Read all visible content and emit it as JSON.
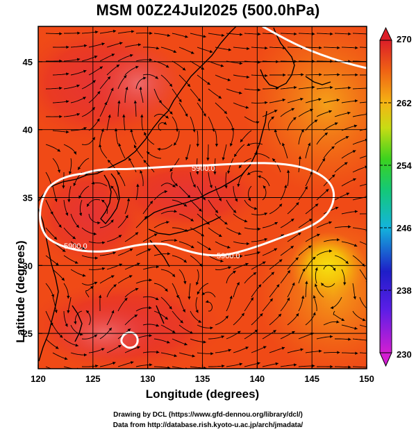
{
  "title": "MSM 00Z24Jul2025 (500.0hPa)",
  "xlabel": "Longitude (degrees)",
  "ylabel": "Latitude  (degrees)",
  "credit_line1": "Drawing by DCL (https://www.gfd-dennou.org/library/dcl/)",
  "credit_line2": "Data from http://database.rish.kyoto-u.ac.jp/arch/jmadata/",
  "map": {
    "lon_range": [
      120,
      150
    ],
    "lat_range": [
      22.4,
      47.6
    ],
    "x_ticks": [
      "120",
      "125",
      "130",
      "135",
      "140",
      "145",
      "150"
    ],
    "y_ticks": [
      "25",
      "30",
      "35",
      "40",
      "45"
    ],
    "contour_labels": [
      "5900.0",
      "5900.0",
      "5900.0"
    ],
    "colors": {
      "field_warm": "#f03a14",
      "field_hot": "#e52a2a",
      "field_orange": "#f57a14",
      "anticyclone_yellow": "#f5cc0a",
      "contour": "#ffffff",
      "streamline": "#000000"
    }
  },
  "colorbar": {
    "ticks": [
      "270",
      "262",
      "254",
      "246",
      "238",
      "230"
    ],
    "min": 230,
    "max": 270,
    "colors": [
      "#d21ed2",
      "#1e1ec8",
      "#14b4dc",
      "#14c878",
      "#32d21e",
      "#c8dc14",
      "#f5a014",
      "#f05014",
      "#dc1e28"
    ]
  }
}
